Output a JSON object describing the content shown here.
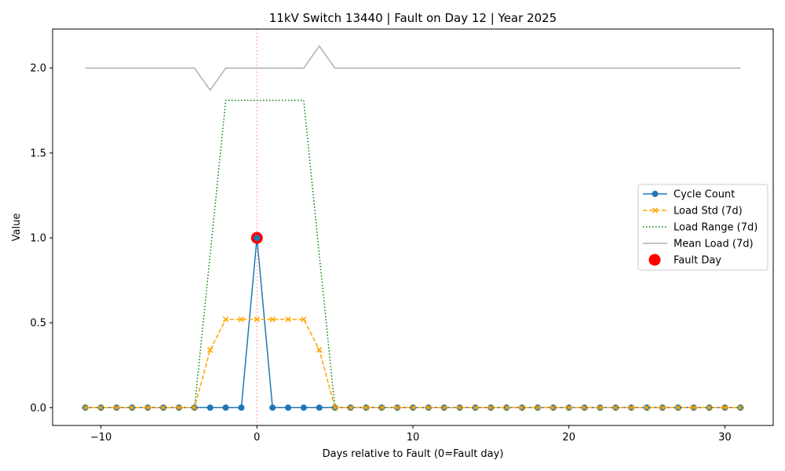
{
  "chart_data": {
    "type": "line",
    "title": "11kV Switch 13440 | Fault on Day 12 | Year 2025",
    "xlabel": "Days relative to Fault (0=Fault day)",
    "ylabel": "Value",
    "xlim": [
      -13.1,
      33.1
    ],
    "ylim": [
      -0.105,
      2.23
    ],
    "xticks": [
      -10,
      0,
      10,
      20,
      30
    ],
    "yticks": [
      0.0,
      0.5,
      1.0,
      1.5,
      2.0
    ],
    "xtick_labels": [
      "−10",
      "0",
      "10",
      "20",
      "30"
    ],
    "ytick_labels": [
      "0.0",
      "0.5",
      "1.0",
      "1.5",
      "2.0"
    ],
    "grid": false,
    "legend_position": "center-right",
    "fault_line_x": 0,
    "x": [
      -11,
      -10,
      -9,
      -8,
      -7,
      -6,
      -5,
      -4,
      -3,
      -2,
      -1,
      0,
      1,
      2,
      3,
      4,
      5,
      6,
      7,
      8,
      9,
      10,
      11,
      12,
      13,
      14,
      15,
      16,
      17,
      18,
      19,
      20,
      21,
      22,
      23,
      24,
      25,
      26,
      27,
      28,
      29,
      30,
      31
    ],
    "series": [
      {
        "name": "Cycle Count",
        "color": "#1f77b4",
        "style": "solid-circle",
        "values": [
          0,
          0,
          0,
          0,
          0,
          0,
          0,
          0,
          0,
          0,
          0,
          1,
          0,
          0,
          0,
          0,
          0,
          0,
          0,
          0,
          0,
          0,
          0,
          0,
          0,
          0,
          0,
          0,
          0,
          0,
          0,
          0,
          0,
          0,
          0,
          0,
          0,
          0,
          0,
          0,
          0,
          0,
          0
        ]
      },
      {
        "name": "Load Std (7d)",
        "color": "#ffa500",
        "style": "dashed-x",
        "values": [
          0,
          0,
          0,
          0,
          0,
          0,
          0,
          0,
          0.34,
          0.52,
          0.52,
          0.52,
          0.52,
          0.52,
          0.52,
          0.34,
          0,
          0,
          0,
          0,
          0,
          0,
          0,
          0,
          0,
          0,
          0,
          0,
          0,
          0,
          0,
          0,
          0,
          0,
          0,
          0,
          0,
          0,
          0,
          0,
          0,
          0,
          0
        ]
      },
      {
        "name": "Load Range (7d)",
        "color": "#008000",
        "style": "dotted",
        "values": [
          0,
          0,
          0,
          0,
          0,
          0,
          0,
          0,
          0.9,
          1.81,
          1.81,
          1.81,
          1.81,
          1.81,
          1.81,
          0.9,
          0,
          0,
          0,
          0,
          0,
          0,
          0,
          0,
          0,
          0,
          0,
          0,
          0,
          0,
          0,
          0,
          0,
          0,
          0,
          0,
          0,
          0,
          0,
          0,
          0,
          0,
          0
        ]
      },
      {
        "name": "Mean Load (7d)",
        "color": "#b0b0b0",
        "style": "solid",
        "values": [
          2,
          2,
          2,
          2,
          2,
          2,
          2,
          2,
          1.87,
          2,
          2,
          2,
          2,
          2,
          2,
          2.13,
          2,
          2,
          2,
          2,
          2,
          2,
          2,
          2,
          2,
          2,
          2,
          2,
          2,
          2,
          2,
          2,
          2,
          2,
          2,
          2,
          2,
          2,
          2,
          2,
          2,
          2,
          2
        ]
      }
    ],
    "fault_point": {
      "name": "Fault Day",
      "x": 0,
      "y": 1,
      "color": "#ff0000"
    }
  }
}
